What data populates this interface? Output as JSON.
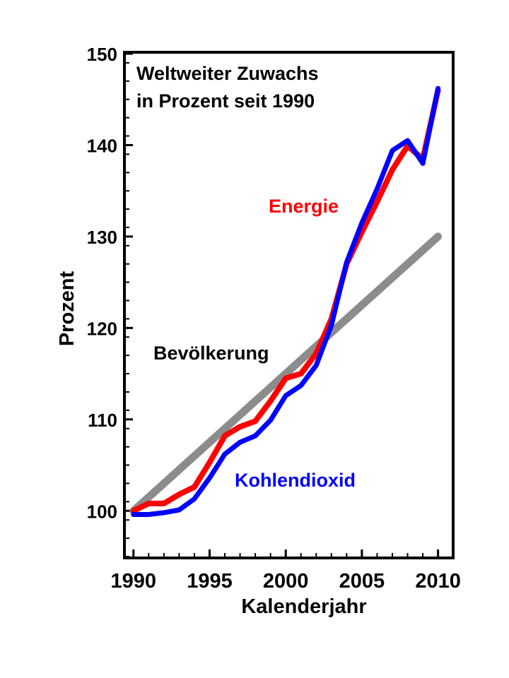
{
  "chart_data": {
    "type": "line",
    "title": "Weltweiter Zuwachs",
    "subtitle": "in Prozent seit 1990",
    "xlabel": "Kalenderjahr",
    "ylabel": "Prozent",
    "xlim": [
      1989.5,
      2010.9
    ],
    "ylim": [
      95,
      150
    ],
    "x_ticks": [
      "1990",
      "1995",
      "2000",
      "2005",
      "2010"
    ],
    "y_ticks": [
      "100",
      "110",
      "120",
      "130",
      "140",
      "150"
    ],
    "grid": false,
    "legend": "none (series labeled inline)",
    "series": [
      {
        "name": "Bevölkerung",
        "color": "#8c8c8c",
        "x": [
          1990,
          2010
        ],
        "y": [
          100,
          130
        ]
      },
      {
        "name": "Energie",
        "color": "#ff0000",
        "x": [
          1990,
          1991,
          1992,
          1993,
          1994,
          1995,
          1996,
          1997,
          1998,
          1999,
          2000,
          2001,
          2002,
          2003,
          2004,
          2005,
          2006,
          2007,
          2008,
          2009,
          2010
        ],
        "y": [
          100,
          100.8,
          100.8,
          101.8,
          102.6,
          105.3,
          108.2,
          109.2,
          109.8,
          112,
          114.5,
          115,
          117.2,
          121,
          127,
          130.5,
          133.8,
          137.3,
          139.9,
          138.5,
          146
        ]
      },
      {
        "name": "Kohlendioxid",
        "color": "#0000ff",
        "x": [
          1990,
          1991,
          1992,
          1993,
          1994,
          1995,
          1996,
          1997,
          1998,
          1999,
          2000,
          2001,
          2002,
          2003,
          2004,
          2005,
          2006,
          2007,
          2008,
          2009,
          2010
        ],
        "y": [
          99.6,
          99.6,
          99.8,
          100.1,
          101.3,
          103.6,
          106.2,
          107.5,
          108.2,
          109.9,
          112.6,
          113.7,
          115.9,
          120.3,
          127.2,
          131.5,
          135.2,
          139.4,
          140.5,
          138,
          146.2
        ]
      }
    ]
  }
}
